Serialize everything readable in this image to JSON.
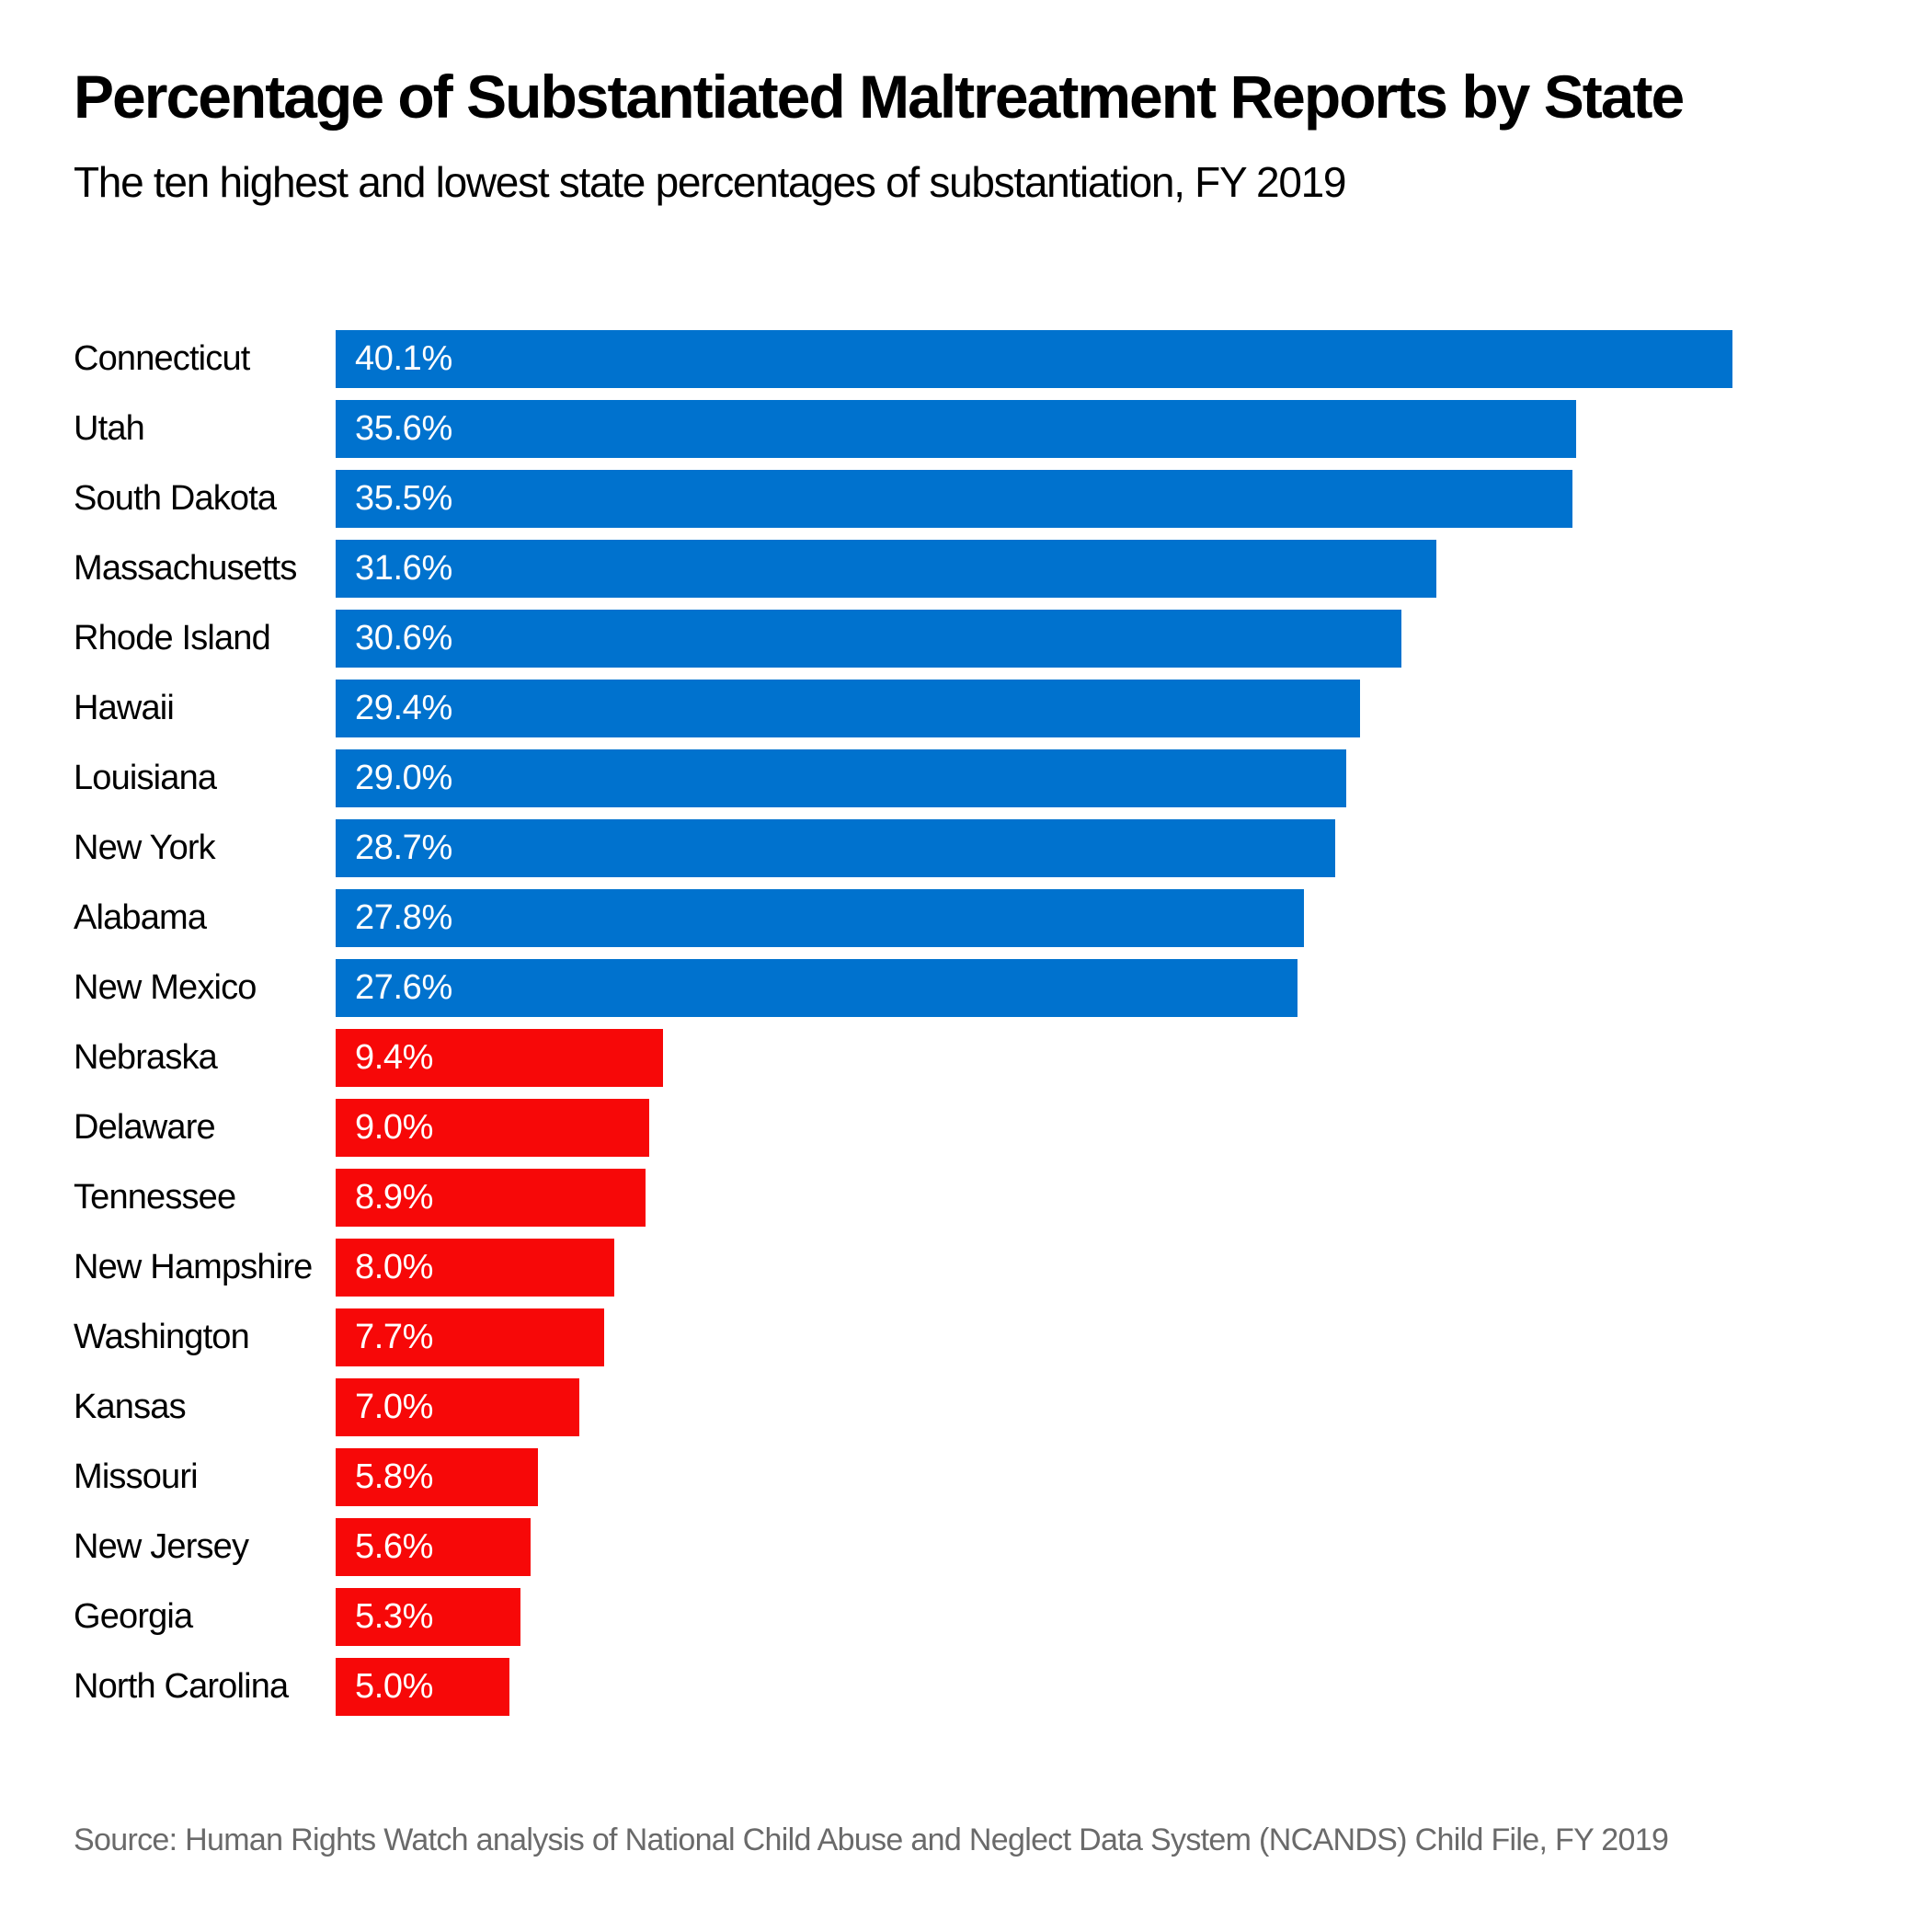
{
  "header": {
    "title": "Percentage of Substantiated Maltreatment Reports by State",
    "subtitle": "The ten highest and lowest state percentages of substantiation, FY 2019"
  },
  "footer": {
    "source": "Source: Human Rights Watch analysis of National Child Abuse and Neglect Data System (NCANDS) Child File, FY 2019"
  },
  "colors": {
    "high_bar": "#0072CE",
    "low_bar": "#F70808",
    "value_text": "#FFFFFF",
    "label_text": "#000000",
    "source_text": "#6A6A6A",
    "background": "#FFFFFF"
  },
  "chart_data": {
    "type": "bar",
    "orientation": "horizontal",
    "title": "Percentage of Substantiated Maltreatment Reports by State",
    "subtitle": "The ten highest and lowest state percentages of substantiation, FY 2019",
    "xlabel": "",
    "ylabel": "",
    "xlim": [
      0,
      44
    ],
    "grid": false,
    "legend": false,
    "categories": [
      "Connecticut",
      "Utah",
      "South Dakota",
      "Massachusetts",
      "Rhode Island",
      "Hawaii",
      "Louisiana",
      "New York",
      "Alabama",
      "New Mexico",
      "Nebraska",
      "Delaware",
      "Tennessee",
      "New Hampshire",
      "Washington",
      "Kansas",
      "Missouri",
      "New Jersey",
      "Georgia",
      "North Carolina"
    ],
    "values": [
      40.1,
      35.6,
      35.5,
      31.6,
      30.6,
      29.4,
      29.0,
      28.7,
      27.8,
      27.6,
      9.4,
      9.0,
      8.9,
      8.0,
      7.7,
      7.0,
      5.8,
      5.6,
      5.3,
      5.0
    ],
    "value_labels": [
      "40.1%",
      "35.6%",
      "35.5%",
      "31.6%",
      "30.6%",
      "29.4%",
      "29.0%",
      "28.7%",
      "27.8%",
      "27.6%",
      "9.4%",
      "9.0%",
      "8.9%",
      "8.0%",
      "7.7%",
      "7.0%",
      "5.8%",
      "5.6%",
      "5.3%",
      "5.0%"
    ],
    "groups": [
      "high",
      "high",
      "high",
      "high",
      "high",
      "high",
      "high",
      "high",
      "high",
      "high",
      "low",
      "low",
      "low",
      "low",
      "low",
      "low",
      "low",
      "low",
      "low",
      "low"
    ],
    "group_meaning": {
      "high": "ten highest state percentages (blue)",
      "low": "ten lowest state percentages (red)"
    }
  }
}
